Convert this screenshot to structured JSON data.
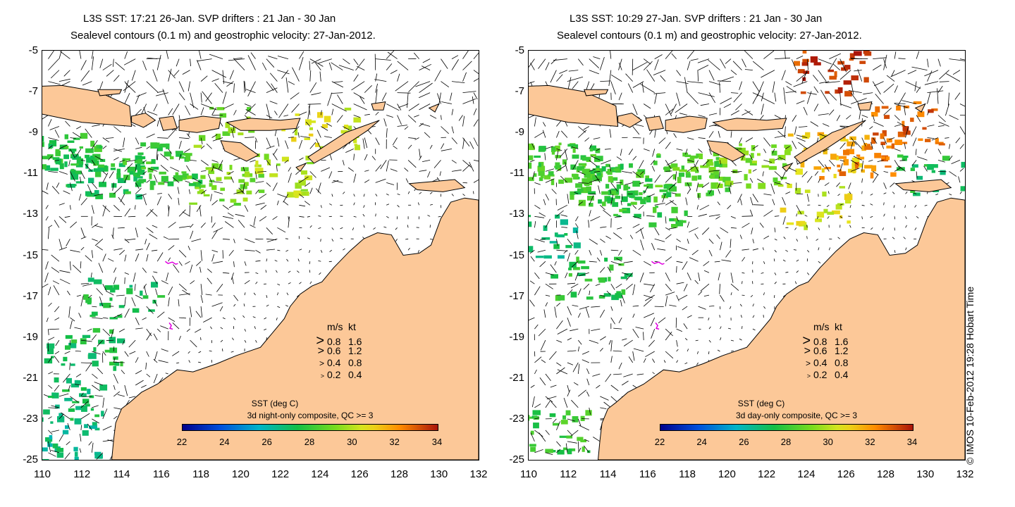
{
  "panels": [
    {
      "title_line1": "L3S SST: 17:21 26-Jan. SVP drifters : 21 Jan - 30 Jan",
      "title_line2": "Sealevel contours (0.1 m) and geostrophic velocity: 27-Jan-2012.",
      "colorbar_title": "SST (deg C)",
      "colorbar_subtitle": "3d night-only composite, QC >= 3"
    },
    {
      "title_line1": "L3S SST: 10:29 27-Jan. SVP drifters : 21 Jan - 30 Jan",
      "title_line2": "Sealevel contours (0.1 m) and geostrophic velocity: 27-Jan-2012.",
      "colorbar_title": "SST (deg C)",
      "colorbar_subtitle": "3d day-only composite, QC >= 3"
    }
  ],
  "y_ticks": [
    "-5",
    "-7",
    "-9",
    "-11",
    "-13",
    "-15",
    "-17",
    "-19",
    "-21",
    "-23",
    "-25"
  ],
  "x_ticks": [
    "110",
    "112",
    "114",
    "116",
    "118",
    "120",
    "122",
    "124",
    "126",
    "128",
    "130",
    "132"
  ],
  "colorbar_ticks": [
    "22",
    "24",
    "26",
    "28",
    "30",
    "32",
    "34"
  ],
  "velocity_legend": {
    "header_ms": "m/s",
    "header_kt": "kt",
    "rows": [
      {
        "ms": "0.8",
        "kt": "1.6"
      },
      {
        "ms": "0.6",
        "kt": "1.2"
      },
      {
        "ms": "0.4",
        "kt": "0.8"
      },
      {
        "ms": "0.2",
        "kt": "0.4"
      }
    ]
  },
  "credit": "© IMOS 10-Feb-2012 19:28 Hobart Time",
  "colors": {
    "land": "#fcc898",
    "sst_low": "#1b0bb0",
    "sst_mid": "#28d01b",
    "sst_high": "#b41a0a"
  },
  "map_extent": {
    "lon": [
      110,
      132
    ],
    "lat": [
      -25,
      -5
    ]
  }
}
